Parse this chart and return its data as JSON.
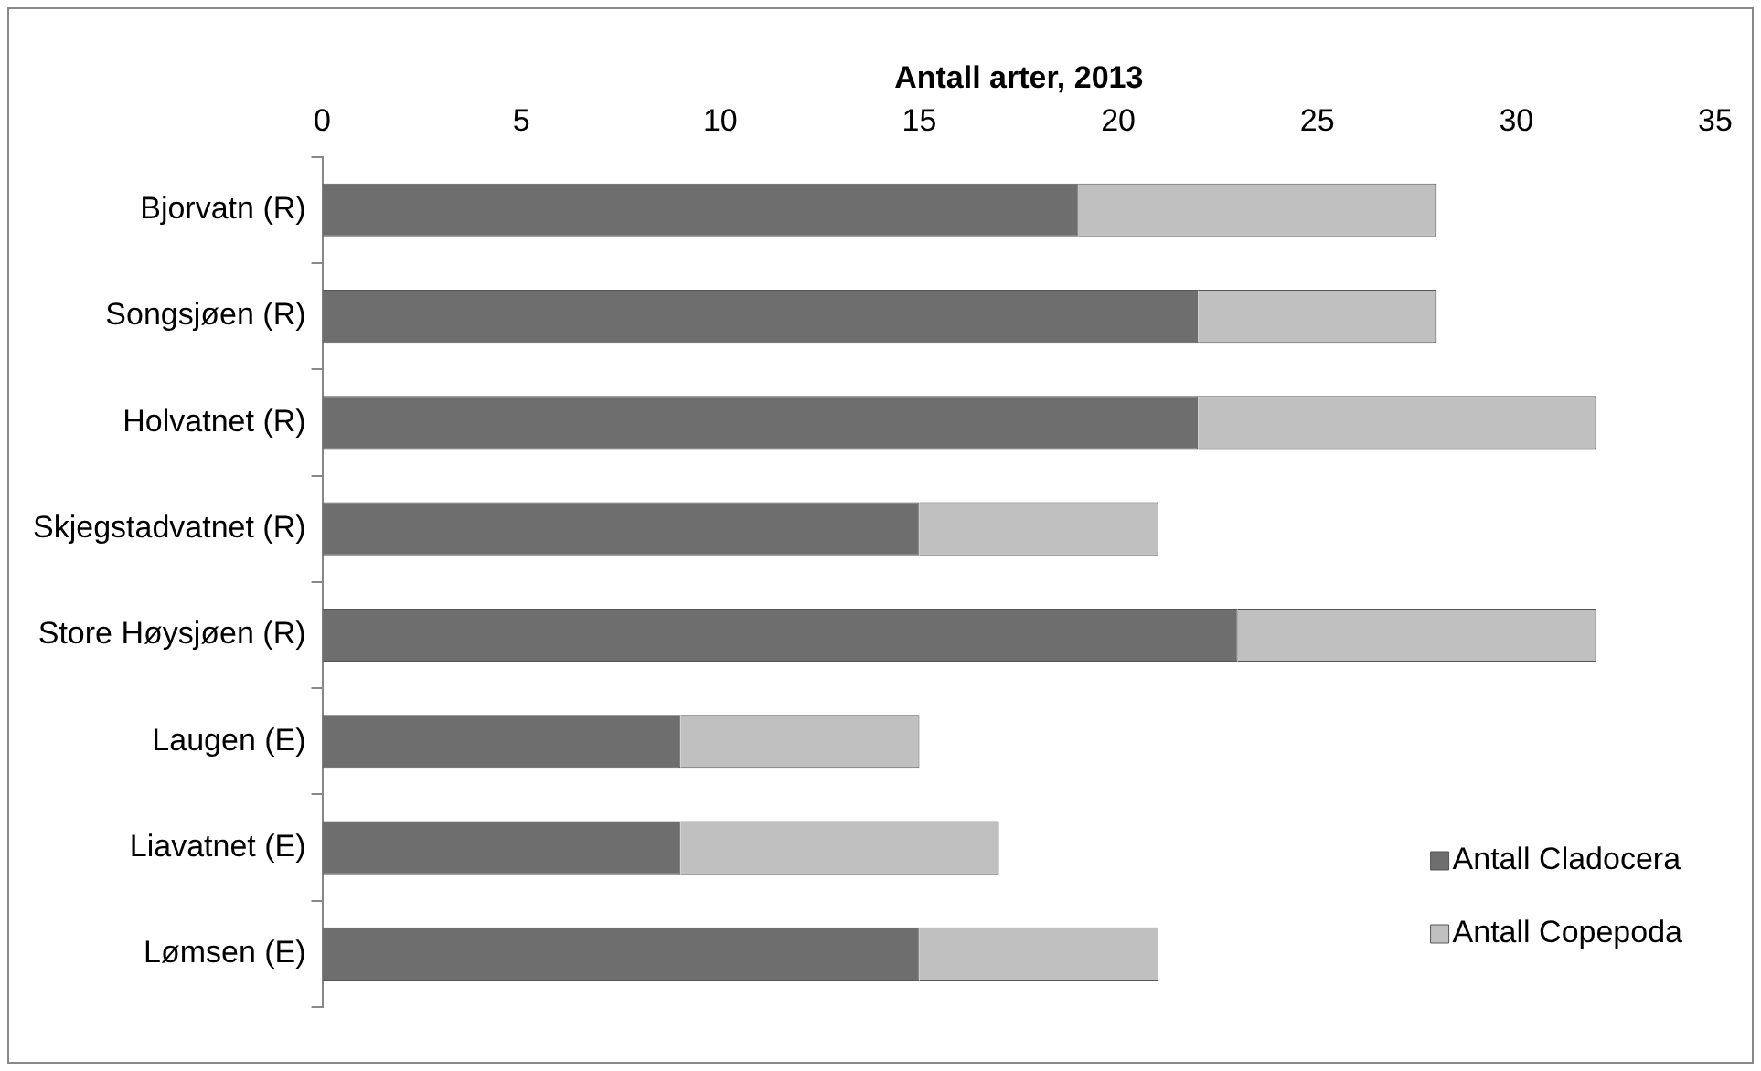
{
  "chart_data": {
    "type": "bar",
    "orientation": "horizontal",
    "stacked": true,
    "xlabel": "Antall arter, 2013",
    "categories": [
      "Bjorvatn (R)",
      "Songsjøen (R)",
      "Holvatnet (R)",
      "Skjegstadvatnet (R)",
      "Store Høysjøen (R)",
      "Laugen (E)",
      "Liavatnet (E)",
      "Lømsen (E)"
    ],
    "series": [
      {
        "name": "Antall Cladocera",
        "color": "#6e6e6e",
        "values": [
          19,
          22,
          22,
          15,
          23,
          9,
          9,
          15
        ]
      },
      {
        "name": "Antall Copepoda",
        "color": "#c0c0c0",
        "values": [
          9,
          6,
          10,
          6,
          9,
          6,
          8,
          6
        ]
      }
    ],
    "xlim": [
      0,
      35
    ],
    "xticks": [
      0,
      5,
      10,
      15,
      20,
      25,
      30,
      35
    ],
    "grid": false,
    "legend": "bottom right"
  }
}
